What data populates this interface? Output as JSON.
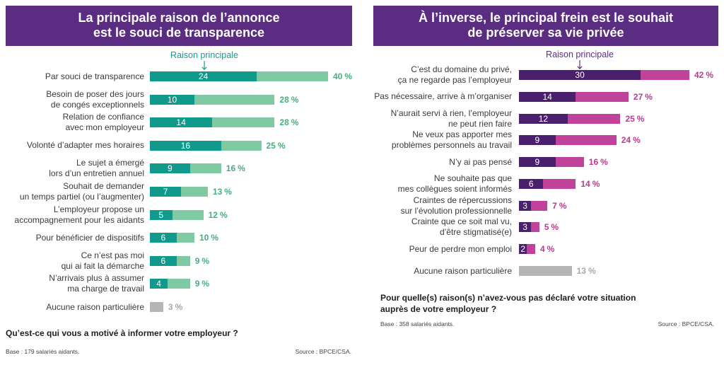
{
  "theme": {
    "header": "#5a2d82"
  },
  "chart_data": [
    {
      "type": "bar",
      "orientation": "horizontal",
      "grid": false,
      "legend": "top",
      "title": "La principale raison de l’annonce\nest le souci de transparence",
      "categories": [
        "Par souci de transparence",
        "Besoin de poser des jours\nde congés exceptionnels",
        "Relation de confiance\navec mon employeur",
        "Volonté d’adapter mes horaires",
        "Le sujet a émergé\nlors d’un entretien annuel",
        "Souhait de demander\nun temps partiel (ou l’augmenter)",
        "L’employeur propose un\naccompagnement pour les aidants",
        "Pour bénéficier de dispositifs",
        "Ce n’est pas moi\nqui ai fait la démarche",
        "N’arrivais plus à assumer\nma charge de travail",
        "Aucune raison particulière"
      ],
      "series": [
        {
          "name": "Raison principale",
          "values": [
            24,
            10,
            14,
            16,
            9,
            7,
            5,
            6,
            6,
            4,
            null
          ]
        },
        {
          "values": [
            40,
            28,
            28,
            25,
            16,
            13,
            12,
            10,
            9,
            9,
            3
          ]
        }
      ],
      "unit": "%",
      "question": "Qu’est-ce qui vous a motivé à informer votre employeur ?",
      "base": "Base : 179 salariés aidants.",
      "source": "Source : BPCE/CSA.",
      "colors": {
        "main": "#0f9a8b",
        "total": "#7fcaa2",
        "value_label": "#48ad7e",
        "legend": "#179b8d",
        "neutral": "#b5b5b5",
        "neutral_label": "#a8a8a8"
      }
    },
    {
      "type": "bar",
      "orientation": "horizontal",
      "grid": false,
      "legend": "top",
      "title": "À l’inverse, le principal frein est le souhait\nde préserver sa vie privée",
      "categories": [
        "C’est du domaine du privé,\nça ne regarde pas l’employeur",
        "Pas nécessaire, arrive à m’organiser",
        "N’aurait servi à rien, l’employeur\nne peut rien faire",
        "Ne veux pas apporter mes\nproblèmes personnels au travail",
        "N’y ai pas pensé",
        "Ne souhaite pas que\nmes collègues soient informés",
        "Craintes de répercussions\nsur l’évolution professionnelle",
        "Crainte que ce soit mal vu,\nd’être stigmatisé(e)",
        "Peur de perdre mon emploi",
        "Aucune raison particulière"
      ],
      "series": [
        {
          "name": "Raison principale",
          "values": [
            30,
            14,
            12,
            9,
            9,
            6,
            3,
            3,
            2,
            null
          ]
        },
        {
          "values": [
            42,
            27,
            25,
            24,
            16,
            14,
            7,
            5,
            4,
            13
          ]
        }
      ],
      "unit": "%",
      "question": "Pour quelle(s) raison(s) n’avez-vous pas déclaré votre situation\nauprès de votre employeur ?",
      "base": "Base : 358 salariés aidants.",
      "source": "Source : BPCE/CSA.",
      "colors": {
        "main": "#4a1f6e",
        "total": "#c0429a",
        "value_label": "#b73b91",
        "legend": "#5a2d82",
        "neutral": "#b5b5b5",
        "neutral_label": "#a8a8a8"
      }
    }
  ]
}
